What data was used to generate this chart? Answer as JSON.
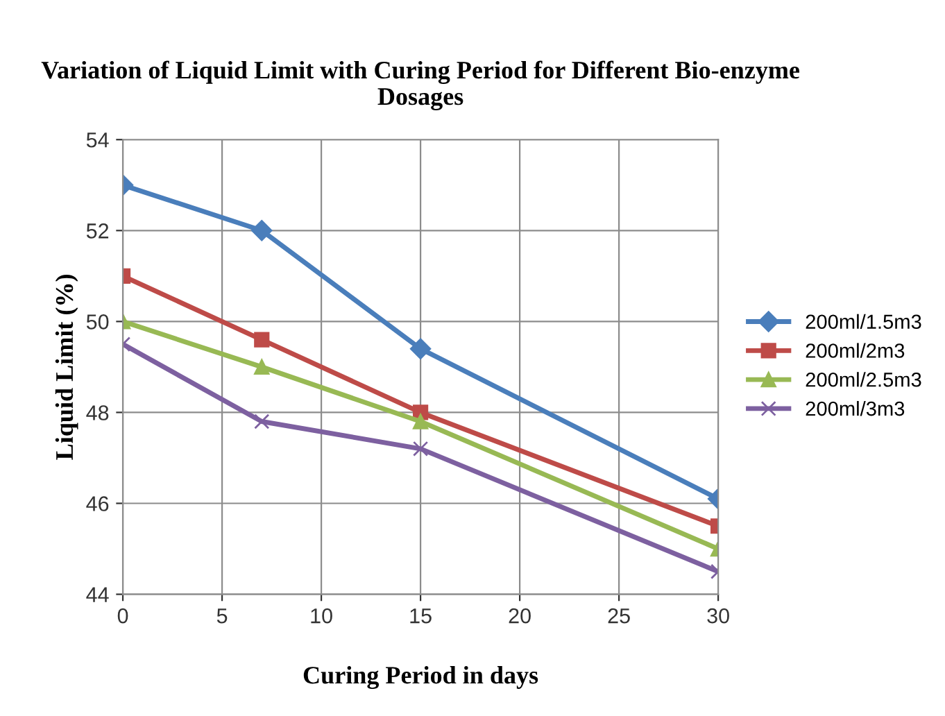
{
  "chart_data": {
    "type": "line",
    "title": "Variation of Liquid Limit with Curing Period for Different Bio-enzyme Dosages",
    "xlabel": "Curing Period in days",
    "ylabel": "Liquid Limit (%)",
    "x": [
      0,
      7,
      15,
      30
    ],
    "series": [
      {
        "name": "200ml/1.5m3",
        "color": "#4a7ebb",
        "marker": "diamond",
        "values": [
          53,
          52,
          49.4,
          46.1
        ]
      },
      {
        "name": "200ml/2m3",
        "color": "#be4b48",
        "marker": "square",
        "values": [
          51,
          49.6,
          48,
          45.5
        ]
      },
      {
        "name": "200ml/2.5m3",
        "color": "#98b954",
        "marker": "triangle",
        "values": [
          50,
          49,
          47.8,
          45
        ]
      },
      {
        "name": "200ml/3m3",
        "color": "#7d60a0",
        "marker": "cross",
        "values": [
          49.5,
          47.8,
          47.2,
          44.5
        ]
      }
    ],
    "xlim": [
      0,
      30
    ],
    "xticks": [
      0,
      5,
      10,
      15,
      20,
      25,
      30
    ],
    "ylim": [
      44,
      54
    ],
    "yticks": [
      44,
      46,
      48,
      50,
      52,
      54
    ],
    "grid": true,
    "legend": "right",
    "line_style": "solid"
  }
}
